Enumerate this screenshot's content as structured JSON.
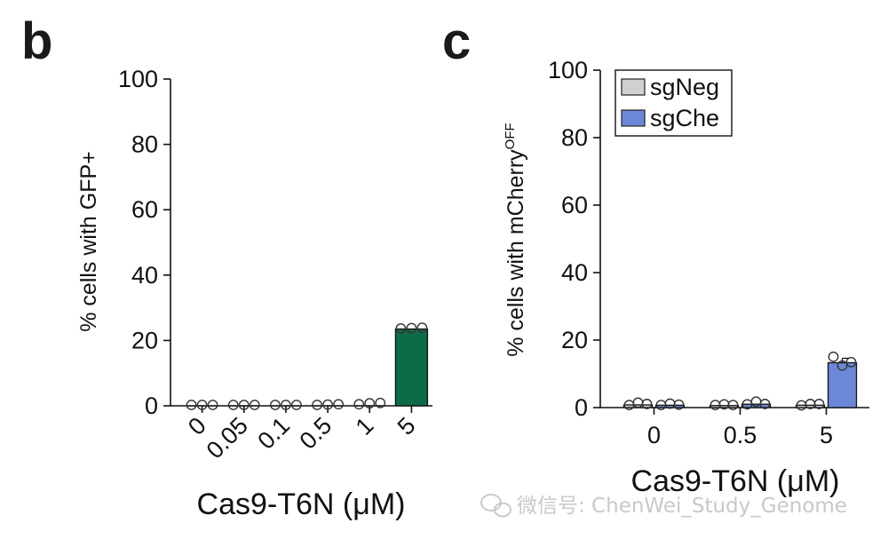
{
  "panel_b_letter": "b",
  "panel_c_letter": "c",
  "watermark": "微信号: ChenWei_Study_Genome",
  "chart_data": [
    {
      "type": "bar",
      "panel": "b",
      "ylabel": "% cells with GFP+",
      "xlabel": "Cas9-T6N (μM)",
      "ylim": [
        0,
        100
      ],
      "yticks": [
        0,
        20,
        40,
        60,
        80,
        100
      ],
      "categories": [
        "0",
        "0.05",
        "0.1",
        "0.5",
        "1",
        "5"
      ],
      "x_tick_rotation_deg": -45,
      "series": [
        {
          "color": "#0e6b48",
          "values": [
            0,
            0,
            0,
            0.1,
            0.4,
            23.5
          ],
          "points": [
            [
              0,
              0,
              0
            ],
            [
              0,
              0,
              0
            ],
            [
              0,
              0,
              0
            ],
            [
              0,
              0.1,
              0.2
            ],
            [
              0.2,
              0.5,
              0.6
            ],
            [
              23.4,
              23.5,
              23.6
            ]
          ]
        }
      ],
      "grid": false
    },
    {
      "type": "bar",
      "panel": "c",
      "ylabel": "% cells with mCherry",
      "ylabel_superscript": "OFF",
      "xlabel": "Cas9-T6N (μM)",
      "ylim": [
        0,
        100
      ],
      "yticks": [
        0,
        20,
        40,
        60,
        80,
        100
      ],
      "categories": [
        "0",
        "0.5",
        "5"
      ],
      "legend_position": "top-right",
      "series": [
        {
          "name": "sgNeg",
          "color": "#d0d0d0",
          "values": [
            0.8,
            0.6,
            0.7
          ],
          "points": [
            [
              0.5,
              1.2,
              0.8
            ],
            [
              0.5,
              0.7,
              0.5
            ],
            [
              0.4,
              0.8,
              0.8
            ]
          ]
        },
        {
          "name": "sgChe",
          "color": "#6b87d8",
          "values": [
            0.7,
            1.0,
            13.3
          ],
          "points": [
            [
              0.5,
              0.9,
              0.6
            ],
            [
              0.7,
              1.5,
              0.8
            ],
            [
              14.8,
              12.2,
              13.2
            ]
          ]
        }
      ],
      "grid": false
    }
  ]
}
